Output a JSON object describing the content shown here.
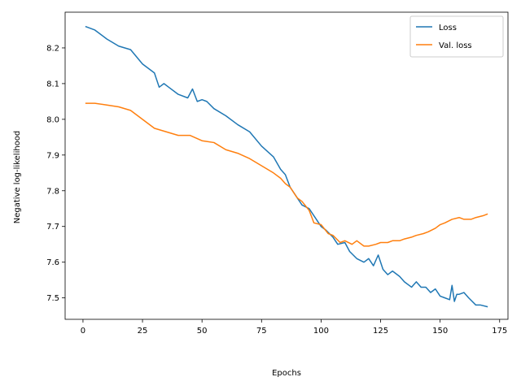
{
  "chart_data": {
    "type": "line",
    "title": "",
    "xlabel": "Epochs",
    "ylabel": "Negative log-likelihood",
    "xlim": [
      -7.5,
      178.5
    ],
    "ylim": [
      7.44,
      8.3
    ],
    "xticks": [
      0,
      25,
      50,
      75,
      100,
      125,
      150,
      175
    ],
    "yticks": [
      7.5,
      7.6,
      7.7,
      7.8,
      7.9,
      8.0,
      8.1,
      8.2
    ],
    "ytick_labels": [
      "7.5",
      "7.6",
      "7.7",
      "7.8",
      "7.9",
      "8.0",
      "8.1",
      "8.2"
    ],
    "grid": false,
    "legend_position": "top-right",
    "series": [
      {
        "name": "Loss",
        "color": "#1f77b4",
        "x": [
          1,
          5,
          10,
          15,
          20,
          25,
          30,
          32,
          34,
          36,
          40,
          44,
          46,
          48,
          50,
          52,
          55,
          60,
          65,
          70,
          75,
          80,
          83,
          85,
          87,
          88,
          90,
          92,
          95,
          97,
          100,
          102,
          105,
          107,
          110,
          112,
          115,
          118,
          120,
          122,
          124,
          126,
          128,
          130,
          133,
          135,
          138,
          140,
          142,
          144,
          146,
          148,
          150,
          152,
          154,
          155,
          156,
          157,
          158,
          160,
          162,
          165,
          167,
          170
        ],
        "y": [
          8.26,
          8.25,
          8.225,
          8.205,
          8.195,
          8.155,
          8.13,
          8.09,
          8.1,
          8.09,
          8.07,
          8.06,
          8.085,
          8.05,
          8.055,
          8.05,
          8.03,
          8.01,
          7.985,
          7.965,
          7.925,
          7.895,
          7.86,
          7.845,
          7.81,
          7.8,
          7.78,
          7.76,
          7.75,
          7.73,
          7.7,
          7.69,
          7.67,
          7.65,
          7.655,
          7.63,
          7.61,
          7.6,
          7.61,
          7.59,
          7.62,
          7.58,
          7.565,
          7.575,
          7.56,
          7.545,
          7.53,
          7.545,
          7.53,
          7.53,
          7.515,
          7.525,
          7.505,
          7.5,
          7.495,
          7.535,
          7.49,
          7.51,
          7.51,
          7.515,
          7.5,
          7.48,
          7.48,
          7.475
        ]
      },
      {
        "name": "Val. loss",
        "color": "#ff7f0e",
        "x": [
          1,
          5,
          10,
          15,
          20,
          25,
          30,
          35,
          40,
          45,
          50,
          55,
          60,
          65,
          70,
          75,
          80,
          83,
          85,
          87,
          90,
          92,
          95,
          97,
          100,
          103,
          105,
          108,
          110,
          113,
          115,
          118,
          120,
          123,
          125,
          128,
          130,
          133,
          135,
          138,
          140,
          143,
          145,
          148,
          150,
          152,
          155,
          158,
          160,
          163,
          165,
          168,
          170
        ],
        "y": [
          8.045,
          8.045,
          8.04,
          8.035,
          8.025,
          8.0,
          7.975,
          7.965,
          7.955,
          7.955,
          7.94,
          7.935,
          7.915,
          7.905,
          7.89,
          7.87,
          7.85,
          7.835,
          7.82,
          7.81,
          7.78,
          7.77,
          7.745,
          7.71,
          7.705,
          7.68,
          7.675,
          7.655,
          7.66,
          7.65,
          7.66,
          7.645,
          7.645,
          7.65,
          7.655,
          7.655,
          7.66,
          7.66,
          7.665,
          7.67,
          7.675,
          7.68,
          7.685,
          7.695,
          7.705,
          7.71,
          7.72,
          7.725,
          7.72,
          7.72,
          7.725,
          7.73,
          7.735
        ]
      }
    ]
  }
}
